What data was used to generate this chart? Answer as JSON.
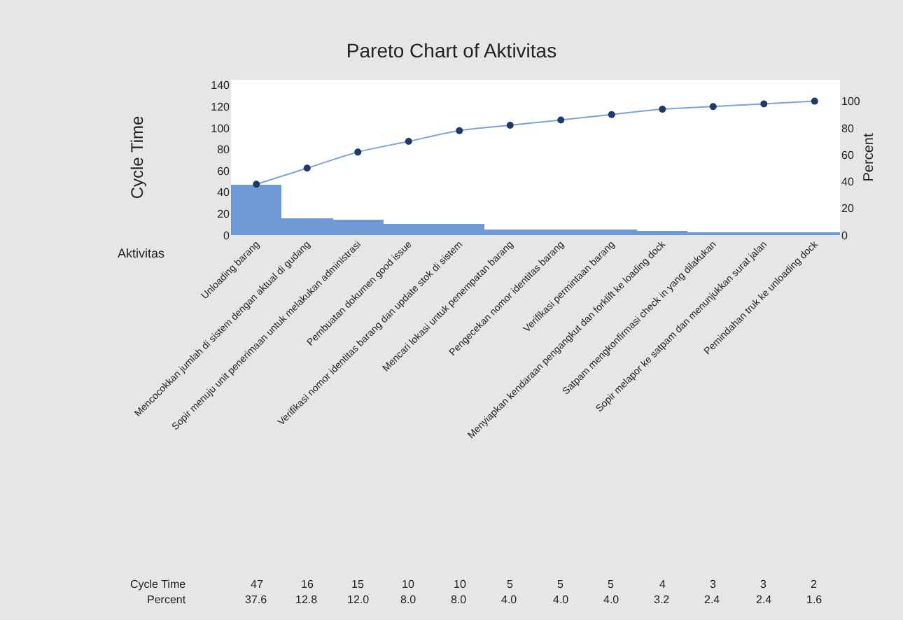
{
  "chart_data": {
    "type": "bar",
    "title": "Pareto Chart of Aktivitas",
    "xlabel": "Aktivitas",
    "ylabel": "Cycle Time",
    "y2label": "Percent",
    "categories": [
      "Unloading barang",
      "Mencocokkan jumlah di sistem dengan aktual di gudang",
      "Sopir menuju unit penerimaan untuk melakukan administrasi",
      "Pembuatan dokumen good issue",
      "Verifikasi nomor identitas barang dan update stok di sistem",
      "Mencari lokasi untuk penempatan barang",
      "Pengecekan nomor identitas barang",
      "Verifikasi permintaan barang",
      "Menyiapkan kendaraan pengangkut dan forklift ke loading dock",
      "Satpam mengkonfirmasi check in yang dilakukan",
      "Sopir melapor ke satpam dan menunjukkan surat jalan",
      "Pemindahan truk ke unloading dock"
    ],
    "series": [
      {
        "name": "Cycle Time",
        "color": "#6d9ad6",
        "values": [
          47,
          16,
          15,
          10,
          10,
          5,
          5,
          5,
          4,
          3,
          3,
          2
        ],
        "value_labels": [
          "47",
          "16",
          "15",
          "10",
          "10",
          "5",
          "5",
          "5",
          "4",
          "3",
          "3",
          "2"
        ]
      },
      {
        "type": "line",
        "axis": "y2",
        "color": "#7ba3d6",
        "values": [
          38,
          50,
          62,
          70,
          78,
          82,
          86,
          90,
          94,
          96,
          98,
          100
        ]
      }
    ],
    "marker": "circle",
    "ylim": [
      0,
      145
    ],
    "yticks": [
      0,
      20,
      40,
      60,
      80,
      100,
      120,
      140
    ],
    "y2lim": [
      0,
      116
    ],
    "y2ticks": [
      0,
      20,
      40,
      60,
      80,
      100
    ],
    "annotations": [
      "Percent",
      "37.6",
      "12.8",
      "12.0",
      "8.0",
      "8.0",
      "4.0",
      "4.0",
      "4.0",
      "3.2",
      "2.4",
      "2.4",
      "1.6"
    ],
    "tick_labels": "xy"
  }
}
